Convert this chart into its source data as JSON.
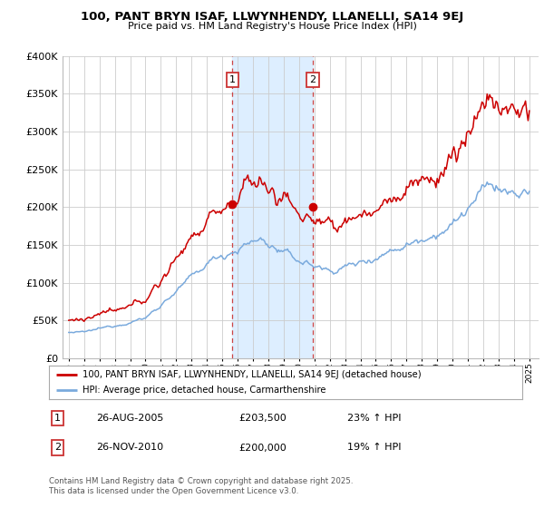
{
  "title": "100, PANT BRYN ISAF, LLWYNHENDY, LLANELLI, SA14 9EJ",
  "subtitle": "Price paid vs. HM Land Registry's House Price Index (HPI)",
  "legend_line1": "100, PANT BRYN ISAF, LLWYNHENDY, LLANELLI, SA14 9EJ (detached house)",
  "legend_line2": "HPI: Average price, detached house, Carmarthenshire",
  "annotation1_date": "26-AUG-2005",
  "annotation1_price": "£203,500",
  "annotation1_hpi": "23% ↑ HPI",
  "annotation2_date": "26-NOV-2010",
  "annotation2_price": "£200,000",
  "annotation2_hpi": "19% ↑ HPI",
  "footer": "Contains HM Land Registry data © Crown copyright and database right 2025.\nThis data is licensed under the Open Government Licence v3.0.",
  "sale1_year": 2005.65,
  "sale2_year": 2010.9,
  "sale1_price": 203500,
  "sale2_price": 200000,
  "red_color": "#cc0000",
  "blue_color": "#7aaadd",
  "shade_color": "#ddeeff",
  "ylim_max": 400000,
  "ylim_min": 0,
  "grid_color": "#cccccc"
}
